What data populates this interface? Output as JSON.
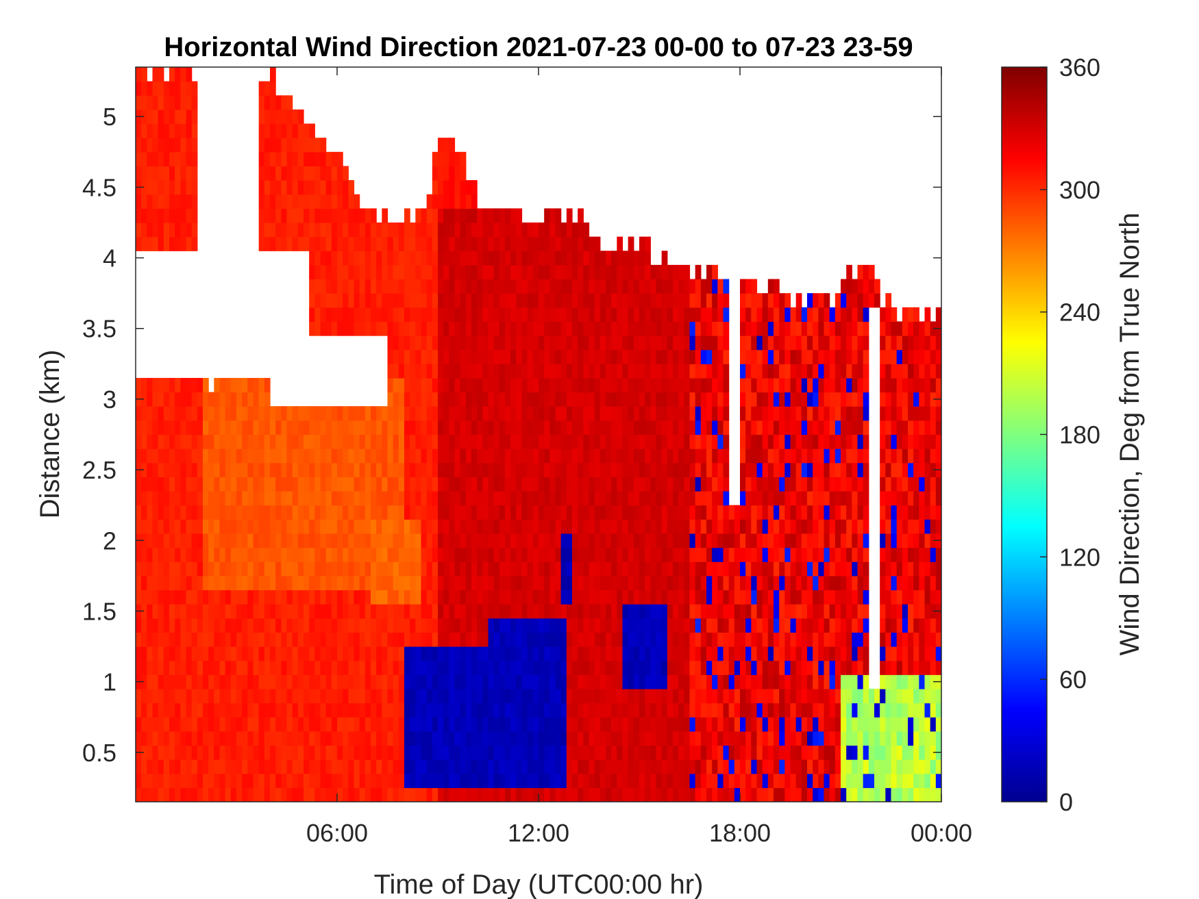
{
  "chart_data": {
    "type": "heatmap",
    "title": "Horizontal Wind Direction 2021-07-23 00-00 to 07-23 23-59",
    "xlabel": "Time of Day (UTC00:00 hr)",
    "ylabel": "Distance (km)",
    "colorbar_label": "Wind Direction, Deg from True North",
    "colormap": "jet",
    "xlim_hours": [
      0,
      24
    ],
    "ylim_km": [
      0.15,
      5.35
    ],
    "x_ticks": [
      {
        "hour": 6,
        "label": "06:00"
      },
      {
        "hour": 12,
        "label": "12:00"
      },
      {
        "hour": 18,
        "label": "18:00"
      },
      {
        "hour": 24,
        "label": "00:00"
      }
    ],
    "y_ticks": [
      {
        "km": 0.5,
        "label": "0.5"
      },
      {
        "km": 1,
        "label": "1"
      },
      {
        "km": 1.5,
        "label": "1.5"
      },
      {
        "km": 2,
        "label": "2"
      },
      {
        "km": 2.5,
        "label": "2.5"
      },
      {
        "km": 3,
        "label": "3"
      },
      {
        "km": 3.5,
        "label": "3.5"
      },
      {
        "km": 4,
        "label": "4"
      },
      {
        "km": 4.5,
        "label": "4.5"
      },
      {
        "km": 5,
        "label": "5"
      }
    ],
    "colorbar_range": [
      0,
      360
    ],
    "colorbar_ticks": [
      {
        "value": 0,
        "label": "0"
      },
      {
        "value": 60,
        "label": "60"
      },
      {
        "value": 120,
        "label": "120"
      },
      {
        "value": 180,
        "label": "180"
      },
      {
        "value": 240,
        "label": "240"
      },
      {
        "value": 300,
        "label": "300"
      },
      {
        "value": 360,
        "label": "360"
      }
    ],
    "data_top_km": [
      {
        "hour": 0.0,
        "km": 5.35
      },
      {
        "hour": 1.0,
        "km": 5.35
      },
      {
        "hour": 1.8,
        "km": 5.35
      },
      {
        "hour": 2.0,
        "km": 3.15
      },
      {
        "hour": 3.5,
        "km": 3.15
      },
      {
        "hour": 3.7,
        "km": 5.35
      },
      {
        "hour": 5.0,
        "km": 5.0
      },
      {
        "hour": 6.0,
        "km": 4.7
      },
      {
        "hour": 7.0,
        "km": 4.3
      },
      {
        "hour": 8.5,
        "km": 4.3
      },
      {
        "hour": 9.0,
        "km": 4.8
      },
      {
        "hour": 9.8,
        "km": 4.8
      },
      {
        "hour": 10.2,
        "km": 4.3
      },
      {
        "hour": 13.2,
        "km": 4.3
      },
      {
        "hour": 13.8,
        "km": 4.1
      },
      {
        "hour": 15.2,
        "km": 4.1
      },
      {
        "hour": 15.5,
        "km": 4.0
      },
      {
        "hour": 16.3,
        "km": 4.0
      },
      {
        "hour": 16.6,
        "km": 3.9
      },
      {
        "hour": 20.5,
        "km": 3.7
      },
      {
        "hour": 21.5,
        "km": 3.9
      },
      {
        "hour": 22.0,
        "km": 3.9
      },
      {
        "hour": 22.3,
        "km": 3.7
      },
      {
        "hour": 23.3,
        "km": 3.6
      },
      {
        "hour": 24.0,
        "km": 3.6
      }
    ],
    "gaps": [
      {
        "hours": [
          0.0,
          5.2
        ],
        "km": [
          3.15,
          4.05
        ],
        "side": "left"
      },
      {
        "hours": [
          4.0,
          7.5
        ],
        "km": [
          2.9,
          3.45
        ],
        "side": "left"
      },
      {
        "hours": [
          21.9,
          22.1
        ],
        "km": [
          1.0,
          3.6
        ],
        "side": "spike"
      },
      {
        "hours": [
          17.75,
          17.95
        ],
        "km": [
          2.2,
          3.8
        ],
        "side": "spike"
      }
    ],
    "regions_deg": [
      {
        "hours": [
          0,
          9
        ],
        "km": [
          0.15,
          5.35
        ],
        "direction_deg": 305
      },
      {
        "hours": [
          2,
          8
        ],
        "km": [
          1.6,
          3.1
        ],
        "direction_deg": 285
      },
      {
        "hours": [
          7,
          8.5
        ],
        "km": [
          1.5,
          2.1
        ],
        "direction_deg": 280
      },
      {
        "hours": [
          9,
          16.5
        ],
        "km": [
          0.15,
          4.3
        ],
        "direction_deg": 330
      },
      {
        "hours": [
          16.5,
          24
        ],
        "km": [
          0.15,
          3.9
        ],
        "direction_deg": 320
      },
      {
        "hours": [
          8,
          10.5
        ],
        "km": [
          0.3,
          1.2
        ],
        "direction_deg": 20
      },
      {
        "hours": [
          10.5,
          12.8
        ],
        "km": [
          0.3,
          1.4
        ],
        "direction_deg": 20
      },
      {
        "hours": [
          12.7,
          13.0
        ],
        "km": [
          1.5,
          2.0
        ],
        "direction_deg": 20
      },
      {
        "hours": [
          14.5,
          15.8
        ],
        "km": [
          0.9,
          1.5
        ],
        "direction_deg": 20
      },
      {
        "hours": [
          21,
          24
        ],
        "km": [
          0.15,
          1.0
        ],
        "direction_deg": 200
      }
    ]
  }
}
